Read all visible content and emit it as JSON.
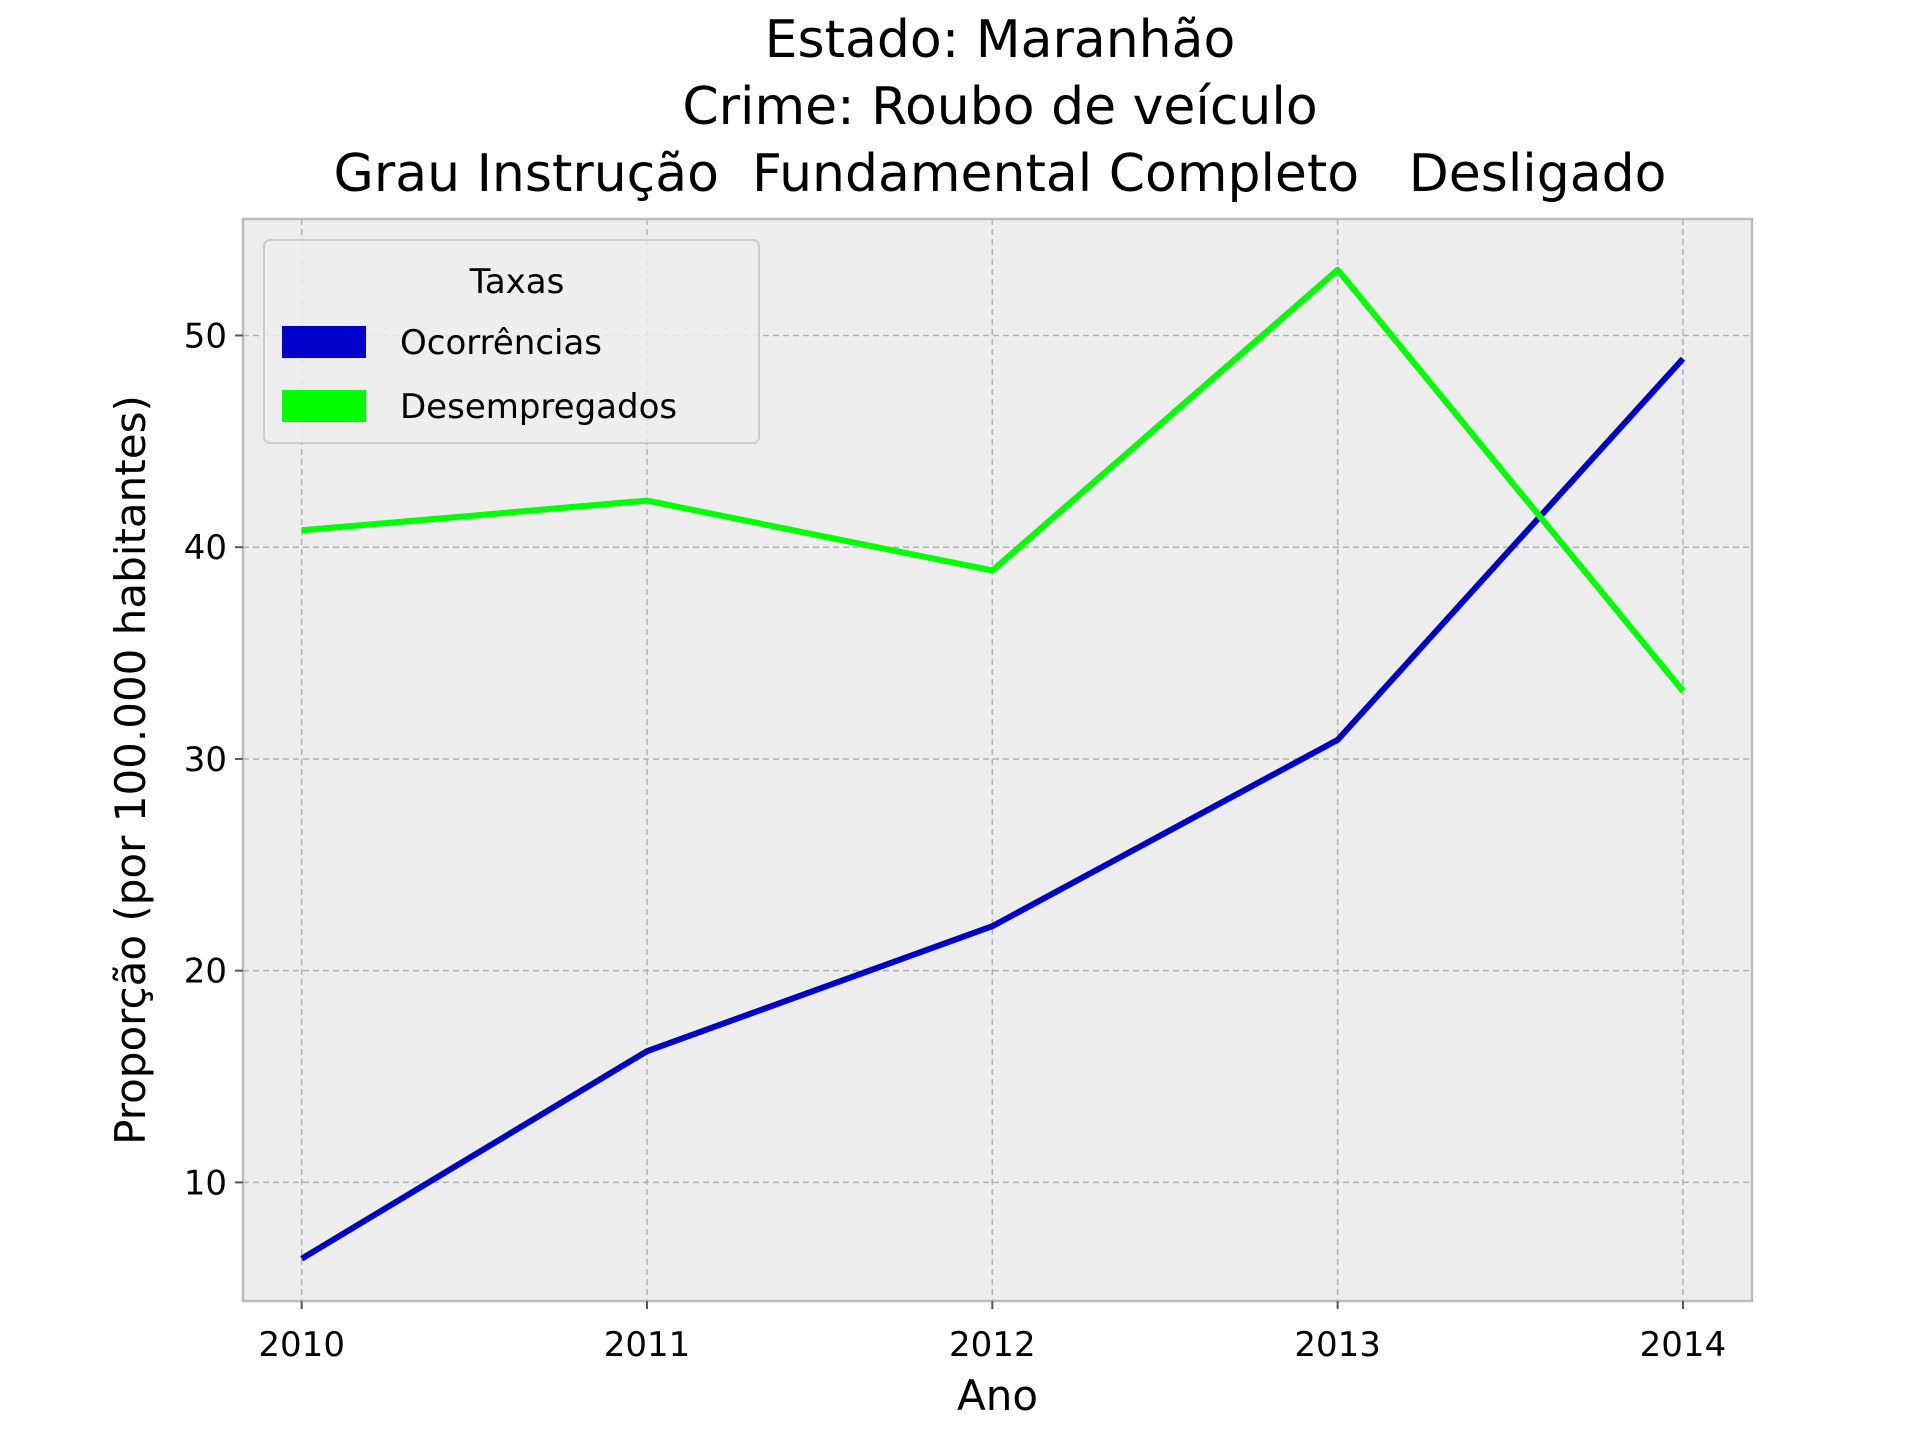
{
  "chart_data": {
    "type": "line",
    "title": [
      "Estado: Maranhão",
      "Crime: Roubo de veículo",
      "Grau Instrução  Fundamental Completo   Desligado"
    ],
    "xlabel": "Ano",
    "ylabel": "Proporção (por 100.000 habitantes)",
    "x": [
      2010,
      2011,
      2012,
      2013,
      2014
    ],
    "xlim": [
      2009.83,
      2014.2
    ],
    "ylim": [
      4.4,
      55.5
    ],
    "yticks": [
      10,
      20,
      30,
      40,
      50
    ],
    "grid": true,
    "legend": {
      "title": "Taxas",
      "position": "top-left"
    },
    "series": [
      {
        "name": "Ocorrências",
        "color": "#0000cc",
        "values": [
          6.4,
          16.2,
          22.1,
          30.9,
          48.9
        ]
      },
      {
        "name": "Desempregados",
        "color": "#00ff00",
        "values": [
          40.8,
          42.2,
          38.9,
          53.1,
          33.2
        ]
      }
    ],
    "colors": {
      "plot_background": "#ededed",
      "axes_edge": "#bcbcbc"
    }
  }
}
